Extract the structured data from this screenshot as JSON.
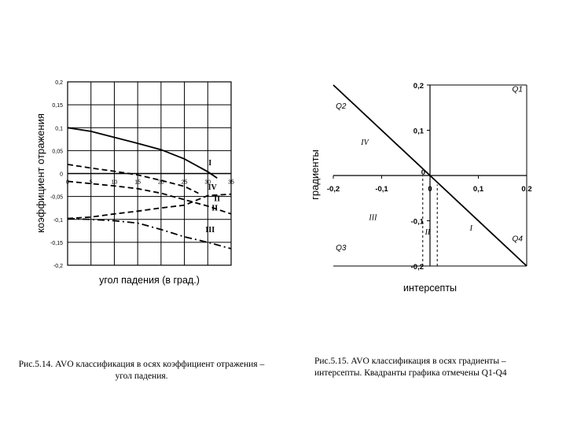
{
  "figures": [
    {
      "id": "fig-5-14",
      "caption": "Рис.5.14. AVO классификация в осях коэффициент отражения – угол падения."
    },
    {
      "id": "fig-5-15",
      "caption": "Рис.5.15. AVO классификация в осях градиенты – интерсепты. Квадранты графика отмечены Q1-Q4"
    }
  ],
  "chart_data": [
    {
      "type": "line",
      "title": "",
      "xlabel": "угол падения (в град.)",
      "ylabel": "коэффициент отражения",
      "xlim": [
        0,
        35
      ],
      "ylim": [
        -0.2,
        0.2
      ],
      "x_ticks": [
        0,
        5,
        10,
        15,
        20,
        25,
        30,
        35
      ],
      "x_tick_labels": [
        "0",
        "5",
        "10",
        "15",
        "20",
        "25",
        "30",
        "35"
      ],
      "y_ticks": [
        0.2,
        0.15,
        0.1,
        0.05,
        0,
        -0.05,
        -0.1,
        -0.15,
        -0.2
      ],
      "y_tick_labels": [
        "0,2",
        "0,15",
        "0,1",
        "0,05",
        "0",
        "-0,05",
        "-0,1",
        "-0,15",
        "-0,2"
      ],
      "grid": true,
      "series": [
        {
          "name": "I",
          "style": "solid",
          "label_at": [
            30.5,
            0.018
          ],
          "points": [
            [
              0,
              0.1
            ],
            [
              5,
              0.092
            ],
            [
              10,
              0.079
            ],
            [
              15,
              0.066
            ],
            [
              20,
              0.052
            ],
            [
              25,
              0.032
            ],
            [
              30,
              0.004
            ],
            [
              32,
              -0.01
            ]
          ]
        },
        {
          "name": "IV",
          "style": "dash",
          "label_at": [
            31,
            -0.035
          ],
          "points": [
            [
              0,
              0.02
            ],
            [
              5,
              0.012
            ],
            [
              10,
              0.005
            ],
            [
              15,
              -0.003
            ],
            [
              20,
              -0.015
            ],
            [
              25,
              -0.028
            ],
            [
              28,
              -0.043
            ]
          ]
        },
        {
          "name": "II",
          "style": "dash",
          "label_at": [
            32,
            -0.06
          ],
          "points": [
            [
              0,
              -0.017
            ],
            [
              5,
              -0.022
            ],
            [
              10,
              -0.027
            ],
            [
              15,
              -0.033
            ],
            [
              20,
              -0.043
            ],
            [
              25,
              -0.057
            ],
            [
              30,
              -0.071
            ],
            [
              35,
              -0.088
            ]
          ]
        },
        {
          "name": "II",
          "style": "dash",
          "label_at": [
            31.5,
            -0.081
          ],
          "points": [
            [
              0,
              -0.098
            ],
            [
              5,
              -0.095
            ],
            [
              10,
              -0.088
            ],
            [
              15,
              -0.082
            ],
            [
              20,
              -0.075
            ],
            [
              25,
              -0.069
            ],
            [
              30,
              -0.048
            ],
            [
              35,
              -0.045
            ]
          ]
        },
        {
          "name": "III",
          "style": "dashdot",
          "label_at": [
            30.5,
            -0.128
          ],
          "points": [
            [
              0,
              -0.098
            ],
            [
              5,
              -0.1
            ],
            [
              10,
              -0.103
            ],
            [
              15,
              -0.108
            ],
            [
              20,
              -0.122
            ],
            [
              25,
              -0.138
            ],
            [
              30,
              -0.15
            ],
            [
              35,
              -0.164
            ]
          ]
        }
      ]
    },
    {
      "type": "line",
      "title": "",
      "xlabel": "интерсепты",
      "ylabel": "градиенты",
      "xlim": [
        -0.2,
        0.2
      ],
      "ylim": [
        -0.2,
        0.2
      ],
      "x_ticks": [
        -0.2,
        -0.1,
        0,
        0.1,
        0.2
      ],
      "x_tick_labels": [
        "-0,2",
        "-0,1",
        "0",
        "0,1",
        "0,2"
      ],
      "y_ticks": [
        0.2,
        0.1,
        -0.1,
        -0.2
      ],
      "y_tick_labels": [
        "0,2",
        "0,1",
        "-0,1",
        "-0,2"
      ],
      "origin_label": "0",
      "series": [
        {
          "name": "",
          "style": "solid",
          "points": [
            [
              -0.2,
              0.2
            ],
            [
              0.2,
              -0.2
            ]
          ]
        }
      ],
      "guides": [
        {
          "style": "dash",
          "x": -0.015,
          "y": [
            -0.2,
            0.0
          ]
        },
        {
          "style": "dash",
          "x": 0.015,
          "y": [
            -0.2,
            -0.02
          ]
        }
      ],
      "quadrant_labels": [
        {
          "text": "Q1",
          "at": [
            0.17,
            0.185
          ]
        },
        {
          "text": "Q2",
          "at": [
            -0.195,
            0.148
          ]
        },
        {
          "text": "Q3",
          "at": [
            -0.195,
            -0.165
          ]
        },
        {
          "text": "Q4",
          "at": [
            0.17,
            -0.145
          ]
        }
      ],
      "class_labels": [
        {
          "text": "IV",
          "at": [
            -0.135,
            0.068
          ]
        },
        {
          "text": "III",
          "at": [
            -0.118,
            -0.098
          ]
        },
        {
          "text": "II",
          "at": [
            -0.005,
            -0.13
          ]
        },
        {
          "text": "I",
          "at": [
            0.085,
            -0.122
          ]
        }
      ]
    }
  ]
}
